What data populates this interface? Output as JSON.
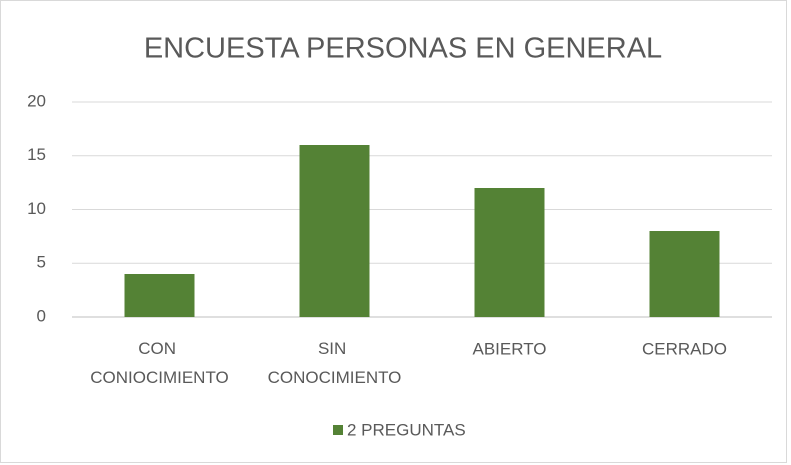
{
  "chart_data": {
    "type": "bar",
    "title": "ENCUESTA PERSONAS EN GENERAL",
    "categories": [
      "CON CONIOCIMIENTO",
      "SIN CONOCIMIENTO",
      "ABIERTO",
      "CERRADO"
    ],
    "series": [
      {
        "name": "2 PREGUNTAS",
        "color": "#548235",
        "values": [
          4,
          16,
          12,
          8
        ]
      }
    ],
    "ylim": [
      0,
      20
    ],
    "yticks": [
      0,
      5,
      10,
      15,
      20
    ],
    "grid": true,
    "legend": "bottom"
  }
}
